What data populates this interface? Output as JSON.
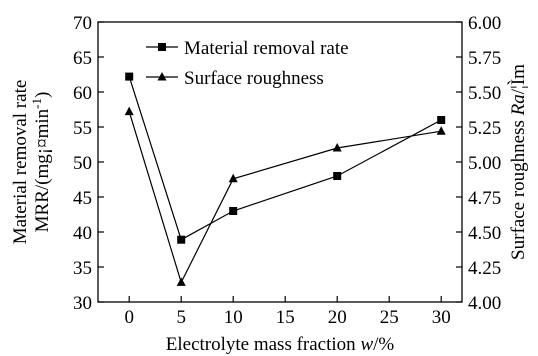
{
  "chart_data": {
    "type": "line",
    "x": [
      0,
      5,
      10,
      20,
      30
    ],
    "x_axis": {
      "range": [
        -3,
        32
      ],
      "ticks": [
        0,
        5,
        10,
        15,
        20,
        25,
        30
      ],
      "tick_labels": [
        "0",
        "5",
        "10",
        "15",
        "20",
        "25",
        "30"
      ],
      "label_parts": [
        {
          "text": "Electrolyte mass fraction ",
          "italic": false
        },
        {
          "text": "w",
          "italic": true
        },
        {
          "text": "/%",
          "italic": false
        }
      ]
    },
    "y_axis_left": {
      "range": [
        30,
        70
      ],
      "ticks": [
        30,
        35,
        40,
        45,
        50,
        55,
        60,
        65,
        70
      ],
      "tick_labels": [
        "30",
        "35",
        "40",
        "45",
        "50",
        "55",
        "60",
        "65",
        "70"
      ],
      "label_line1": "Material removal rate",
      "label_line2": "MRR/(mg¡¤min",
      "label_sup": "-1",
      "label_close": ")"
    },
    "y_axis_right": {
      "range": [
        4.0,
        6.0
      ],
      "ticks": [
        4.0,
        4.25,
        4.5,
        4.75,
        5.0,
        5.25,
        5.5,
        5.75,
        6.0
      ],
      "tick_labels": [
        "4.00",
        "4.25",
        "4.50",
        "4.75",
        "5.00",
        "5.25",
        "5.50",
        "5.75",
        "6.00"
      ],
      "label_parts": [
        {
          "text": "Surface roughness ",
          "italic": false
        },
        {
          "text": "Ra",
          "italic": true
        },
        {
          "text": "/¦Ìm",
          "italic": false
        }
      ]
    },
    "series": [
      {
        "name": "Material removal rate",
        "marker": "square",
        "axis": "left",
        "values": [
          62.2,
          38.9,
          43.0,
          48.0,
          56.0
        ]
      },
      {
        "name": "Surface roughness",
        "marker": "triangle",
        "axis": "right",
        "values": [
          5.36,
          4.14,
          4.88,
          5.1,
          5.22
        ]
      }
    ],
    "legend": "top-center",
    "grid": false
  }
}
